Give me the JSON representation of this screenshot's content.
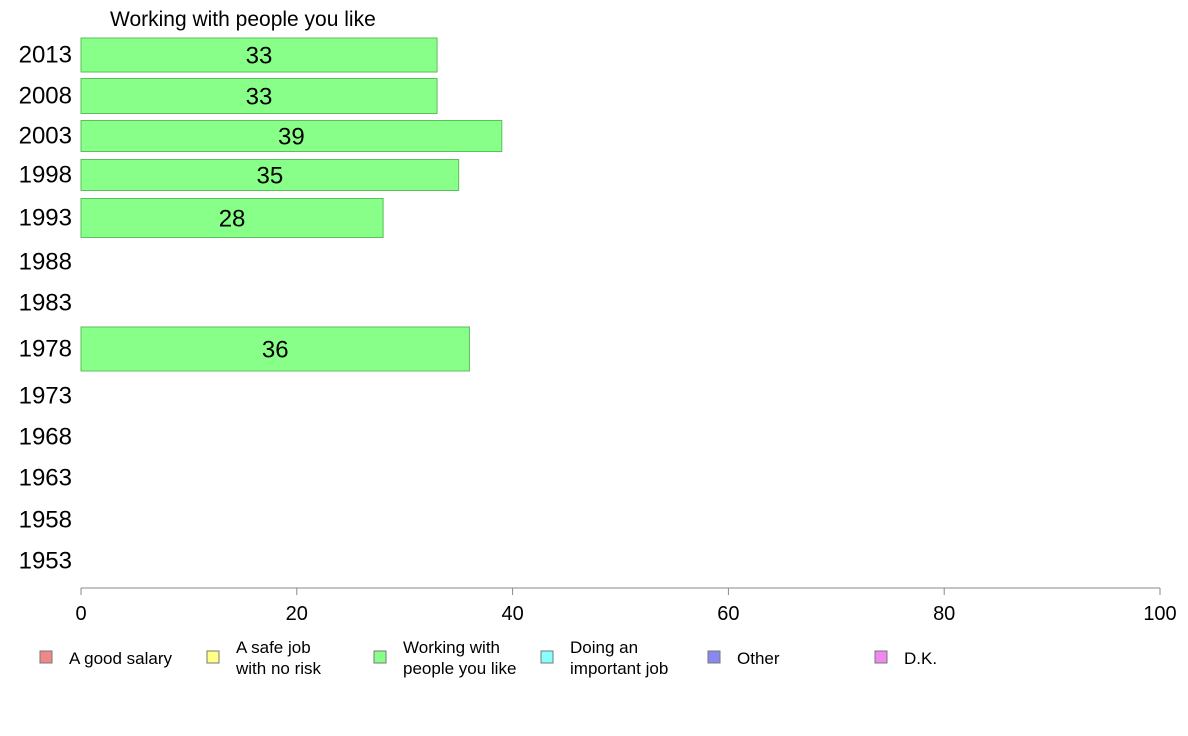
{
  "chart_data": {
    "type": "bar",
    "orientation": "horizontal",
    "title": "Working with people you like",
    "categories": [
      "2013",
      "2008",
      "2003",
      "1998",
      "1993",
      "1988",
      "1983",
      "1978",
      "1973",
      "1968",
      "1963",
      "1958",
      "1953"
    ],
    "series": [
      {
        "name": "Working with people you like",
        "color": "#88ff88",
        "values": [
          33,
          33,
          39,
          35,
          28,
          null,
          null,
          36,
          null,
          null,
          null,
          null,
          null
        ]
      }
    ],
    "xlim": [
      0,
      100
    ],
    "xticks": [
      "0",
      "20",
      "40",
      "60",
      "80",
      "100"
    ],
    "grid": false,
    "legend_position": "bottom",
    "legend": [
      {
        "lines": [
          "A good salary"
        ],
        "color": "#f08888"
      },
      {
        "lines": [
          "A safe job",
          "with no risk"
        ],
        "color": "#ffff88"
      },
      {
        "lines": [
          "Working with",
          "people you like"
        ],
        "color": "#88ff88"
      },
      {
        "lines": [
          "Doing an",
          "important job"
        ],
        "color": "#88ffff"
      },
      {
        "lines": [
          "Other"
        ],
        "color": "#8888f0"
      },
      {
        "lines": [
          "D.K."
        ],
        "color": "#f088f0"
      }
    ]
  }
}
